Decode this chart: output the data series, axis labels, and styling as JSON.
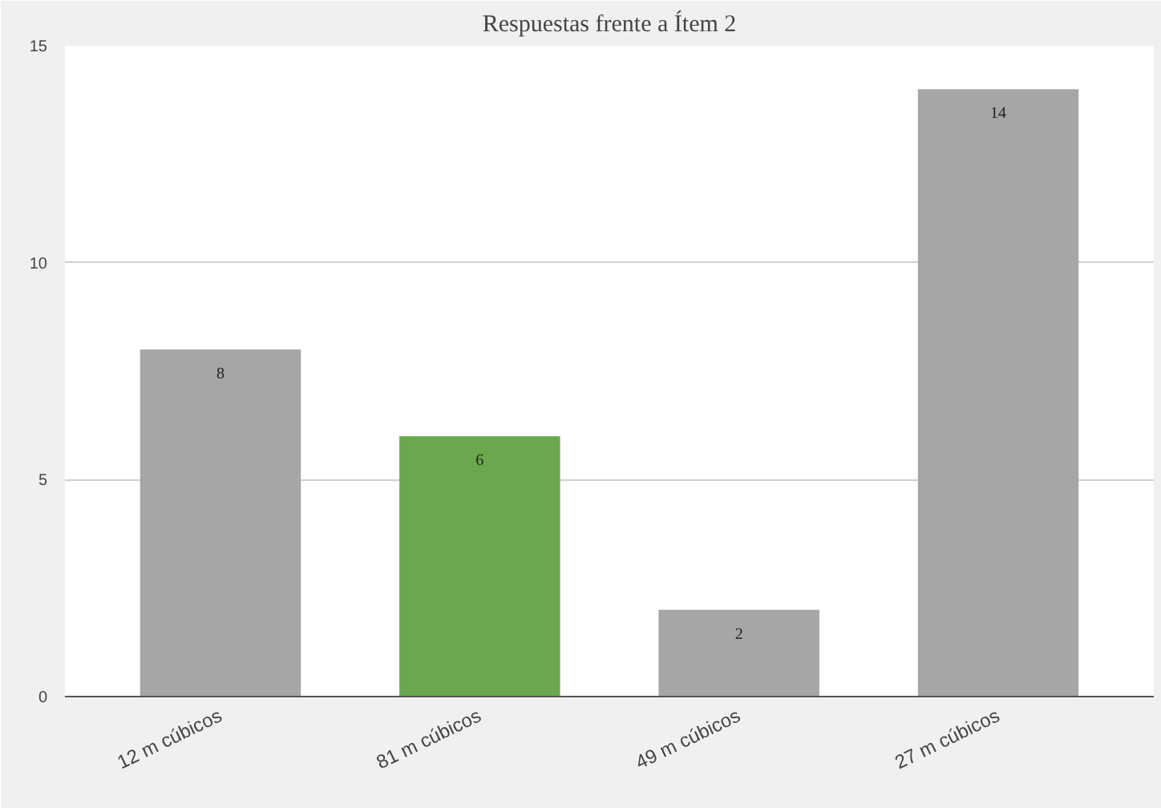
{
  "chart_data": {
    "type": "bar",
    "title": "Respuestas frente a Ítem 2",
    "categories": [
      "12 m cúbicos",
      "81 m cúbicos",
      "49 m cúbicos",
      "27 m cúbicos"
    ],
    "values": [
      8,
      6,
      2,
      14
    ],
    "colors": [
      "#a6a6a6",
      "#6aa84f",
      "#a6a6a6",
      "#a6a6a6"
    ],
    "ylim": [
      0,
      15
    ],
    "yticks": [
      0,
      5,
      10,
      15
    ],
    "grid": "y",
    "data_labels": true
  }
}
